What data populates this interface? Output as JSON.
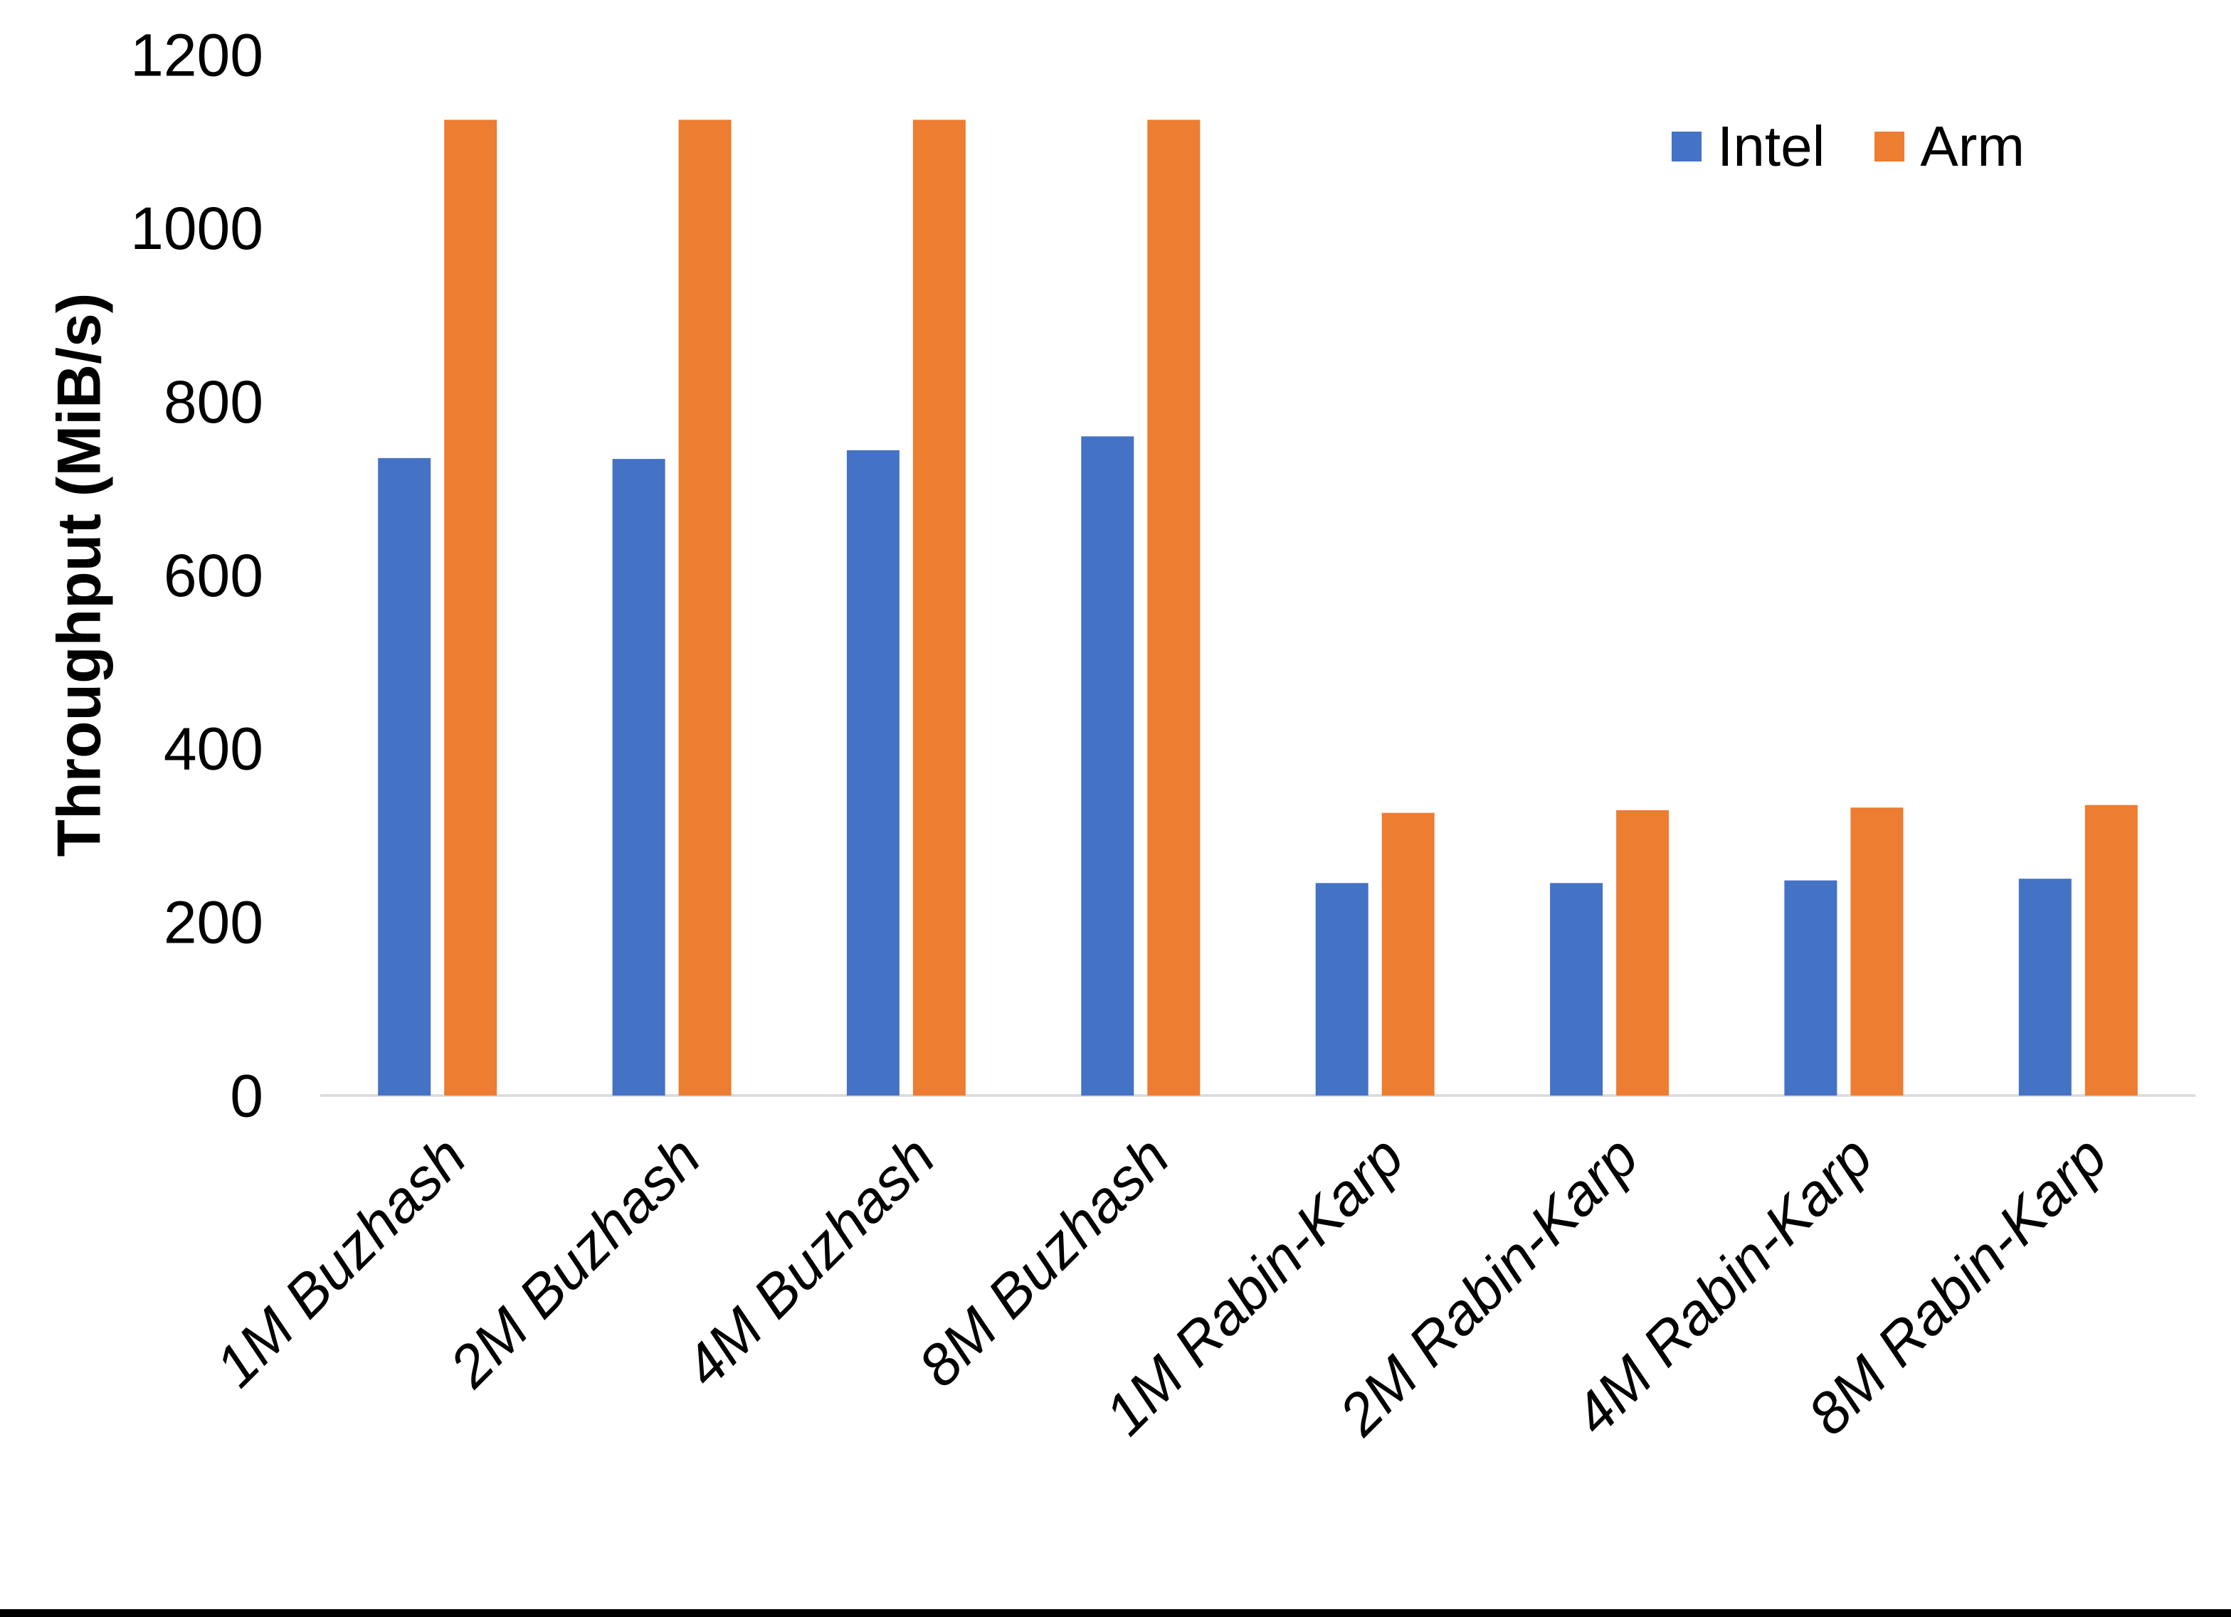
{
  "chart_data": {
    "type": "bar",
    "title": "",
    "xlabel": "",
    "ylabel": "Throughput (MiB/s)",
    "ylim": [
      0,
      1200
    ],
    "yticks": [
      0,
      200,
      400,
      600,
      800,
      1000,
      1200
    ],
    "grid": false,
    "legend_position": "top-right",
    "background_color": "#ffffff",
    "axis_line_color": "#d9d9d9",
    "text_color": "#000000",
    "categories": [
      "1M Buzhash",
      "2M Buzhash",
      "4M Buzhash",
      "8M Buzhash",
      "1M Rabin-Karp",
      "2M Rabin-Karp",
      "4M Rabin-Karp",
      "8M Rabin-Karp"
    ],
    "series": [
      {
        "name": "Intel",
        "color": "#4472C4",
        "values": [
          735,
          734,
          744,
          760,
          245,
          245,
          248,
          250
        ]
      },
      {
        "name": "Arm",
        "color": "#ED7D31",
        "values": [
          1125,
          1125,
          1125,
          1125,
          326,
          329,
          332,
          335
        ]
      }
    ]
  },
  "page": {
    "bottom_border_color": "#000000"
  }
}
